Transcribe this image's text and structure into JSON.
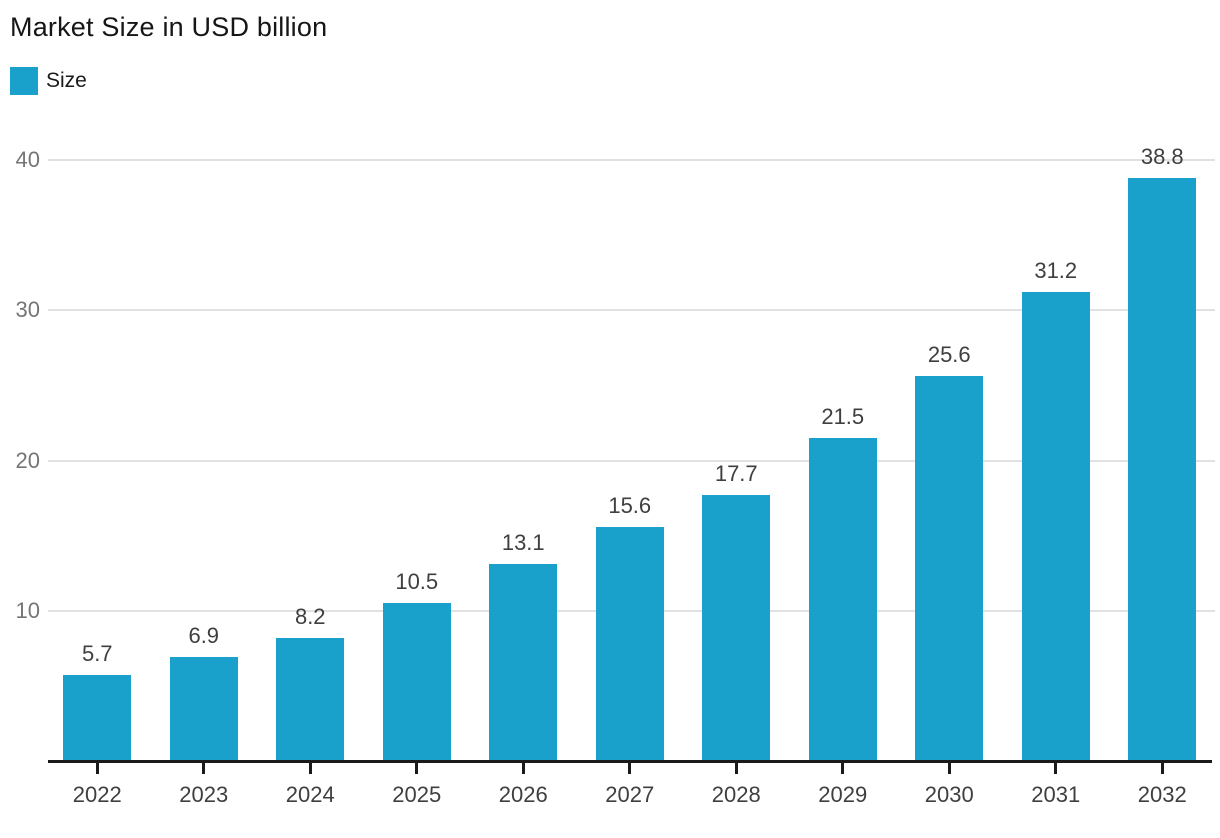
{
  "title": "Market Size in USD billion",
  "legend": {
    "label": "Size",
    "swatch_icon": "series-color-swatch"
  },
  "colors": {
    "bar": "#1AA1CB",
    "gridline": "#E1E1E1",
    "axis_line": "#1A1A1A",
    "y_tick_label": "#757575",
    "x_tick_label": "#3F3F3F",
    "value_label": "#3F3F3F",
    "title": "#161616",
    "background": "#FFFFFF"
  },
  "chart_data": {
    "type": "bar",
    "title": "Market Size in USD billion",
    "categories": [
      "2022",
      "2023",
      "2024",
      "2025",
      "2026",
      "2027",
      "2028",
      "2029",
      "2030",
      "2031",
      "2032"
    ],
    "series": [
      {
        "name": "Size",
        "values": [
          5.7,
          6.9,
          8.2,
          10.5,
          13.1,
          15.6,
          17.7,
          21.5,
          25.6,
          31.2,
          38.8
        ]
      }
    ],
    "value_labels": [
      5.7,
      6.9,
      8.2,
      10.5,
      13.1,
      15.6,
      17.7,
      21.5,
      25.6,
      31.2,
      38.8
    ],
    "xlabel": "",
    "ylabel": "",
    "ylim": [
      0,
      40
    ],
    "y_ticks": [
      10,
      20,
      30,
      40
    ],
    "grid": true,
    "legend_position": "top-left",
    "bar_labels_shown": true
  }
}
